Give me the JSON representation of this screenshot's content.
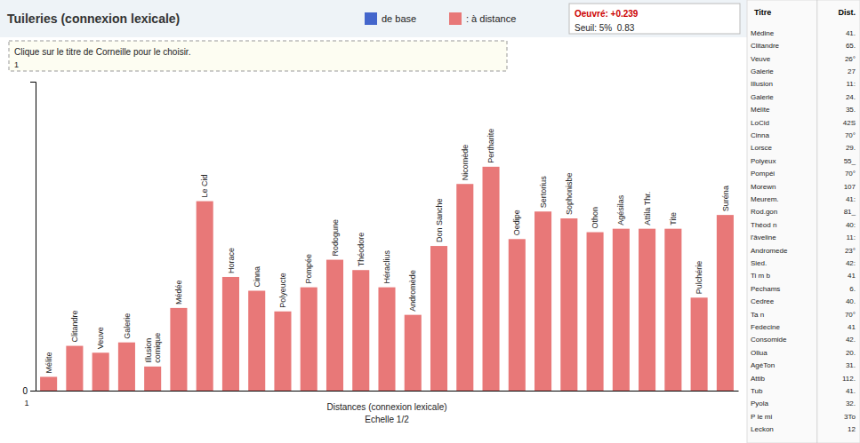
{
  "chart_data": {
    "type": "bar",
    "title": "Tuileries (connexion lexicale)",
    "categories": [
      "Mélite",
      "Clitandre",
      "Veuve",
      "Galerie",
      "Illusion\ncomique",
      "Médée",
      "Le Cid",
      "Horace",
      "Cinna",
      "Polyeucte",
      "Pompée",
      "Rodogune",
      "Théodore",
      "Héraclius",
      "Andromède",
      "Don Sanche",
      "Nicomède",
      "Pertharite",
      "Oedipe",
      "Sertorius",
      "Sophonisbe",
      "Othon",
      "Agésilas",
      "Attila Thr.",
      "Tite",
      "Pulchérie",
      "Suréna"
    ],
    "series": [
      {
        "name": "de base",
        "color": "#4466cc",
        "values": [
          null,
          null,
          null,
          null,
          null,
          null,
          null,
          null,
          null,
          null,
          null,
          null,
          null,
          null,
          null,
          null,
          null,
          null,
          null,
          null,
          null,
          null,
          null,
          null,
          null,
          null,
          null
        ]
      },
      {
        "name": ": à distance",
        "color": "#e87878",
        "values": [
          0.04,
          0.13,
          0.11,
          0.14,
          0.07,
          0.24,
          0.55,
          0.33,
          0.29,
          0.23,
          0.3,
          0.38,
          0.35,
          0.3,
          0.22,
          0.42,
          0.6,
          0.65,
          0.44,
          0.52,
          0.5,
          0.46,
          0.47,
          0.47,
          0.47,
          0.27,
          0.51
        ]
      }
    ],
    "xlabel": "Distances (connexion lexicale)\nEchelle 1/2",
    "ylim": [
      0,
      0.897
    ],
    "yticks": [
      0
    ],
    "grid": false,
    "legend": "top",
    "tick_labels": "y",
    "annotations": [
      "Oeuvré: +0.239",
      "Seuil: 5%  0.83",
      "Clique sur le titre de Corneille pour le choisir.",
      "1",
      "1"
    ],
    "table": {
      "columns": [
        "Titre",
        "Dist."
      ],
      "rows": [
        [
          "Médine",
          "41."
        ],
        [
          "Clitandre",
          "65."
        ],
        [
          "Veuve",
          "26°"
        ],
        [
          "Galerie",
          "27"
        ],
        [
          "Illusion",
          "11:"
        ],
        [
          "Galerie",
          "24."
        ],
        [
          "Mélite",
          "35."
        ],
        [
          "LoCid",
          "42S"
        ],
        [
          "Cinna",
          "70°"
        ],
        [
          "Lorsce",
          "29."
        ],
        [
          "Polyeux",
          "55_"
        ],
        [
          "Pompéi",
          "70°"
        ],
        [
          "Morewn",
          "107"
        ],
        [
          "Meurem.",
          "41:"
        ],
        [
          "Rod.gon",
          "81_"
        ],
        [
          "Théod n",
          "40:"
        ],
        [
          "l'âveline",
          "11:"
        ],
        [
          "Andromede",
          "23°"
        ],
        [
          "Sied.",
          "42:"
        ],
        [
          "Ti m b",
          "41"
        ],
        [
          "Pechams",
          "6."
        ],
        [
          "Cedree",
          "40."
        ],
        [
          "Ta n",
          "70°"
        ],
        [
          "Fedecine",
          "41"
        ],
        [
          "Consomide",
          "42."
        ],
        [
          "Ollua",
          "20."
        ],
        [
          "AgéTon",
          "31."
        ],
        [
          "Attib",
          "112."
        ],
        [
          "Tub",
          "41."
        ],
        [
          "Pyola",
          "32."
        ],
        [
          "P le mi",
          "3To"
        ],
        [
          "Leckon",
          "12"
        ]
      ]
    }
  }
}
